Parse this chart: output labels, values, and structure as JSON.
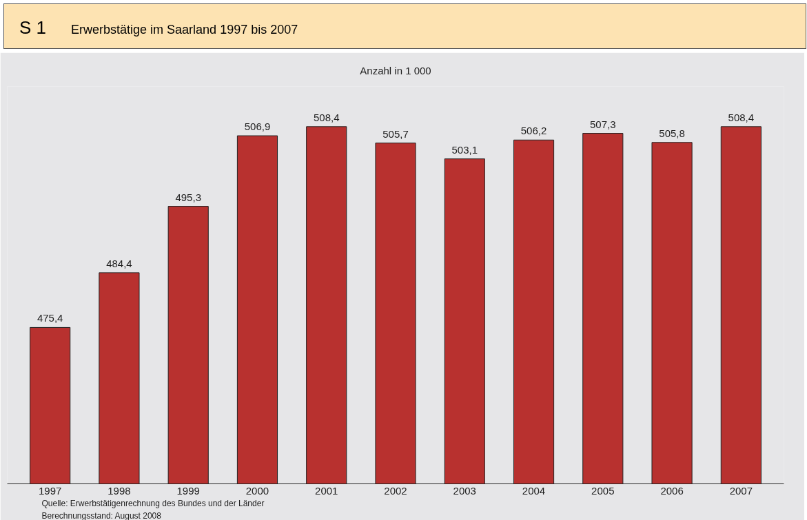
{
  "chart_data": {
    "type": "bar",
    "title": "Erwerbstätige im Saarland 1997 bis 2007",
    "subtitle": "Anzahl in 1 000",
    "annotations": [
      "S 1",
      "Quelle: Erwerbstätigenrechnung des Bundes und der Länder",
      "Berechnungsstand: August 2008"
    ],
    "categories": [
      "1997",
      "1998",
      "1999",
      "2000",
      "2001",
      "2002",
      "2003",
      "2004",
      "2005",
      "2006",
      "2007"
    ],
    "values": [
      475.4,
      484.4,
      495.3,
      506.9,
      508.4,
      505.7,
      503.1,
      506.2,
      507.3,
      505.8,
      508.4
    ],
    "value_labels": [
      "475,4",
      "484,4",
      "495,3",
      "506,9",
      "508,4",
      "505,7",
      "503,1",
      "506,2",
      "507,3",
      "505,8",
      "508,4"
    ],
    "color": "#b8312f",
    "ylim": [
      449.7,
      515
    ],
    "tick_labels": "x"
  }
}
